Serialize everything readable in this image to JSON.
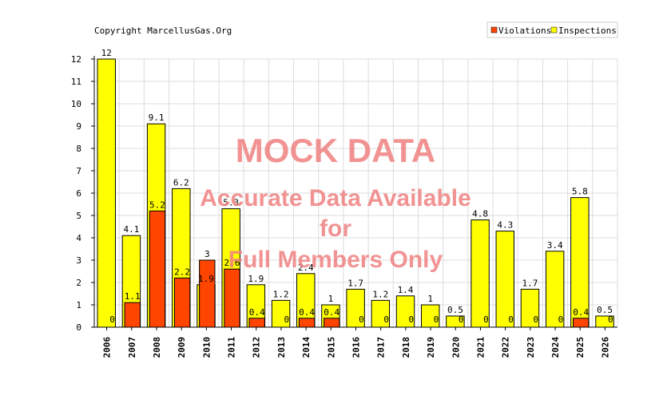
{
  "chart_data": {
    "type": "bar",
    "copyright": "Copyright MarcellusGas.Org",
    "categories": [
      "2006",
      "2007",
      "2008",
      "2009",
      "2010",
      "2011",
      "2012",
      "2013",
      "2014",
      "2015",
      "2016",
      "2017",
      "2018",
      "2019",
      "2020",
      "2021",
      "2022",
      "2023",
      "2024",
      "2025",
      "2026"
    ],
    "series": [
      {
        "name": "Violations",
        "color": "#ff4500",
        "values": [
          0,
          1.1,
          5.2,
          2.2,
          3,
          2.6,
          0.4,
          0,
          0.4,
          0.4,
          0,
          0,
          0,
          0,
          0,
          0,
          0,
          0,
          0,
          0.4,
          0
        ]
      },
      {
        "name": "Inspections",
        "color": "#ffff00",
        "values": [
          12,
          4.1,
          9.1,
          6.2,
          1.9,
          5.3,
          1.9,
          1.2,
          2.4,
          1,
          1.7,
          1.2,
          1.4,
          1,
          0.5,
          4.8,
          4.3,
          1.7,
          3.4,
          5.8,
          0.5
        ]
      }
    ],
    "ylim": [
      0,
      12
    ],
    "yticks": [
      0,
      1,
      2,
      3,
      4,
      5,
      6,
      7,
      8,
      9,
      10,
      11,
      12
    ],
    "grid": true,
    "legend_position": "top-right",
    "watermark": [
      "MOCK DATA",
      "Accurate Data Available",
      "for",
      "Full Members Only"
    ]
  }
}
